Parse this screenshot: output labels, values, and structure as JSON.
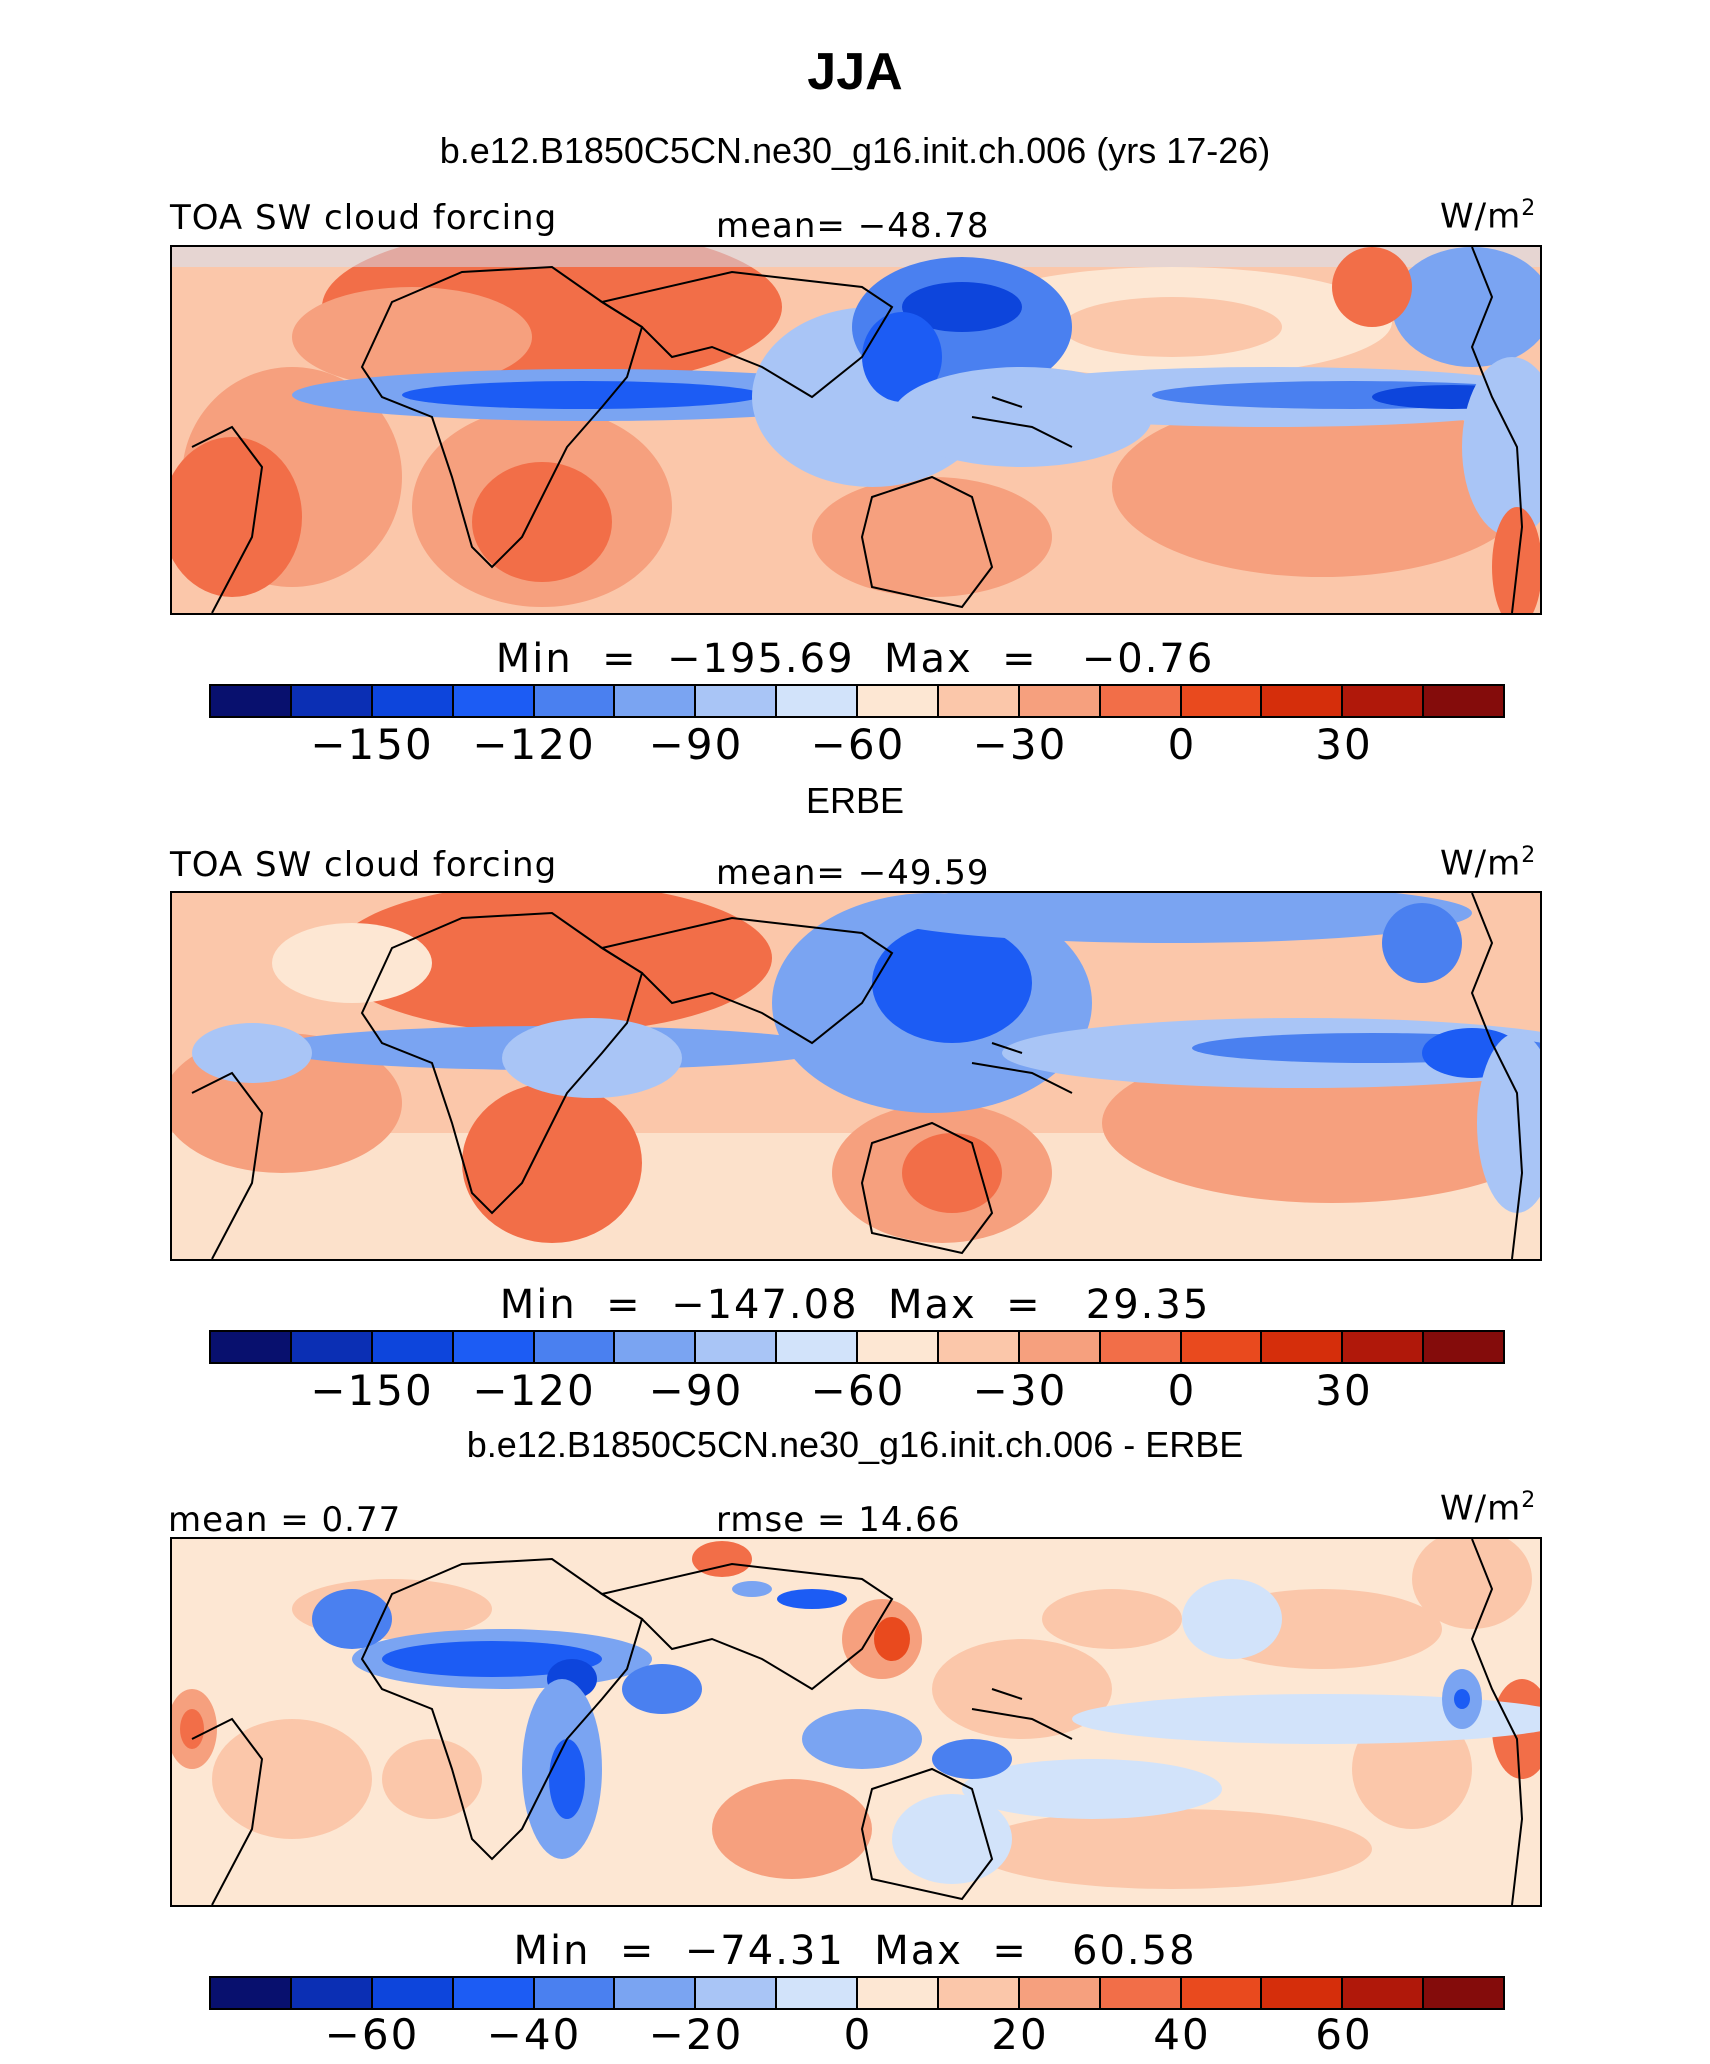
{
  "title": "JJA",
  "palette": [
    "#08106e",
    "#0b2fb4",
    "#0d45dc",
    "#1c5cf4",
    "#4a80f0",
    "#7aa4f2",
    "#a9c5f6",
    "#d2e3fa",
    "#fde7d3",
    "#fbc7aa",
    "#f6a07e",
    "#f26e48",
    "#e94a1e",
    "#d52e0b",
    "#b0180a",
    "#840c0b"
  ],
  "panels": [
    {
      "subtitle": "b.e12.B1850C5CN.ne30_g16.init.ch.006 (yrs 17-26)",
      "left_label": "TOA SW cloud forcing",
      "center_label": "mean= −48.78",
      "units": "W/m",
      "units_sup": "2",
      "stats": "Min  =  −195.69  Max  =   −0.76",
      "ticks": [
        "−150",
        "−120",
        "−90",
        "−60",
        "−30",
        "0",
        "30"
      ],
      "tick_positions": [
        2,
        4,
        6,
        8,
        10,
        12,
        14
      ]
    },
    {
      "subtitle": "ERBE",
      "left_label": "TOA SW cloud forcing",
      "center_label": "mean= −49.59",
      "units": "W/m",
      "units_sup": "2",
      "stats": "Min  =  −147.08  Max  =   29.35",
      "ticks": [
        "−150",
        "−120",
        "−90",
        "−60",
        "−30",
        "0",
        "30"
      ],
      "tick_positions": [
        2,
        4,
        6,
        8,
        10,
        12,
        14
      ]
    },
    {
      "subtitle": "b.e12.B1850C5CN.ne30_g16.init.ch.006 - ERBE",
      "left_label": "mean =    0.77",
      "center_label": "rmse =   14.66",
      "units": "W/m",
      "units_sup": "2",
      "stats": "Min  =  −74.31  Max  =   60.58",
      "ticks": [
        "−60",
        "−40",
        "−20",
        "0",
        "20",
        "40",
        "60"
      ],
      "tick_positions": [
        2,
        4,
        6,
        8,
        10,
        12,
        14
      ]
    }
  ]
}
